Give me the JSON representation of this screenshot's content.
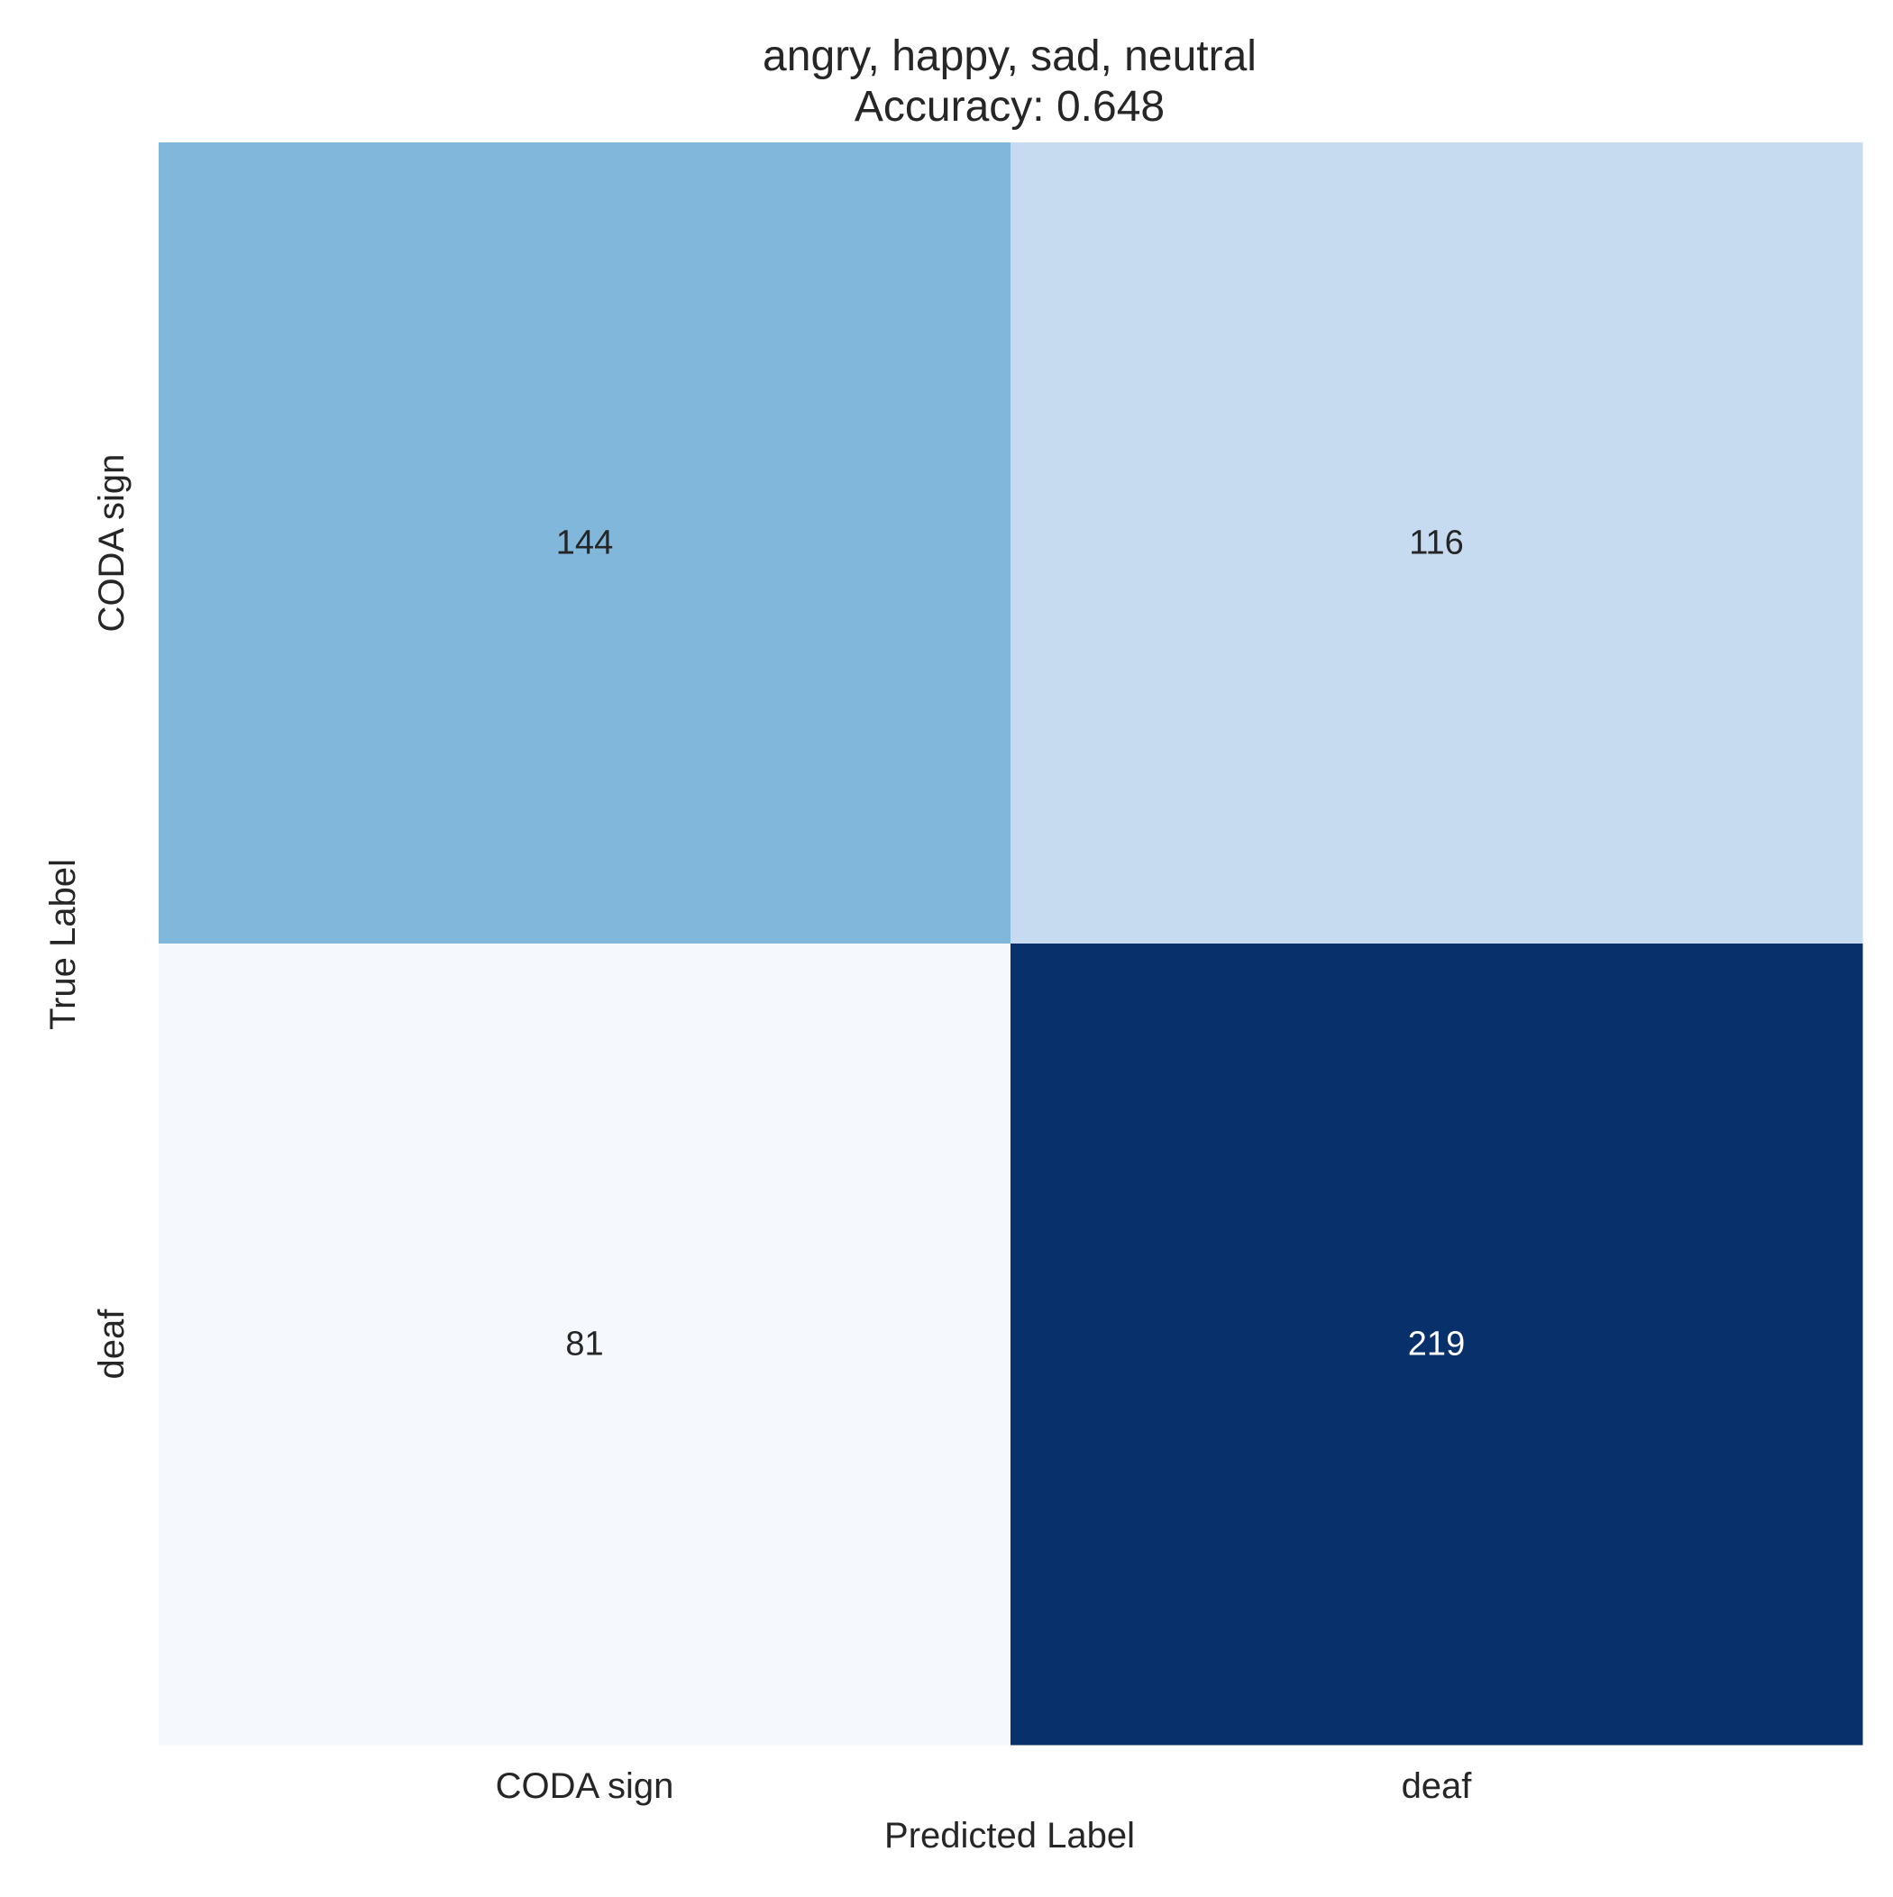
{
  "chart_data": {
    "type": "heatmap",
    "title_lines": [
      "angry, happy, sad, neutral",
      "Accuracy: 0.648"
    ],
    "xlabel": "Predicted Label",
    "ylabel": "True Label",
    "x_categories": [
      "CODA sign",
      "deaf"
    ],
    "y_categories": [
      "CODA sign",
      "deaf"
    ],
    "values": [
      [
        144,
        116
      ],
      [
        81,
        219
      ]
    ],
    "colormap": "Blues",
    "cell_colors": [
      [
        "#81b7db",
        "#c6dbef"
      ],
      [
        "#f5f9fe",
        "#08306b"
      ]
    ],
    "annotation_text_colors": [
      [
        "#262626",
        "#262626"
      ],
      [
        "#262626",
        "#ffffff"
      ]
    ],
    "colorbar": false,
    "grid": false
  }
}
